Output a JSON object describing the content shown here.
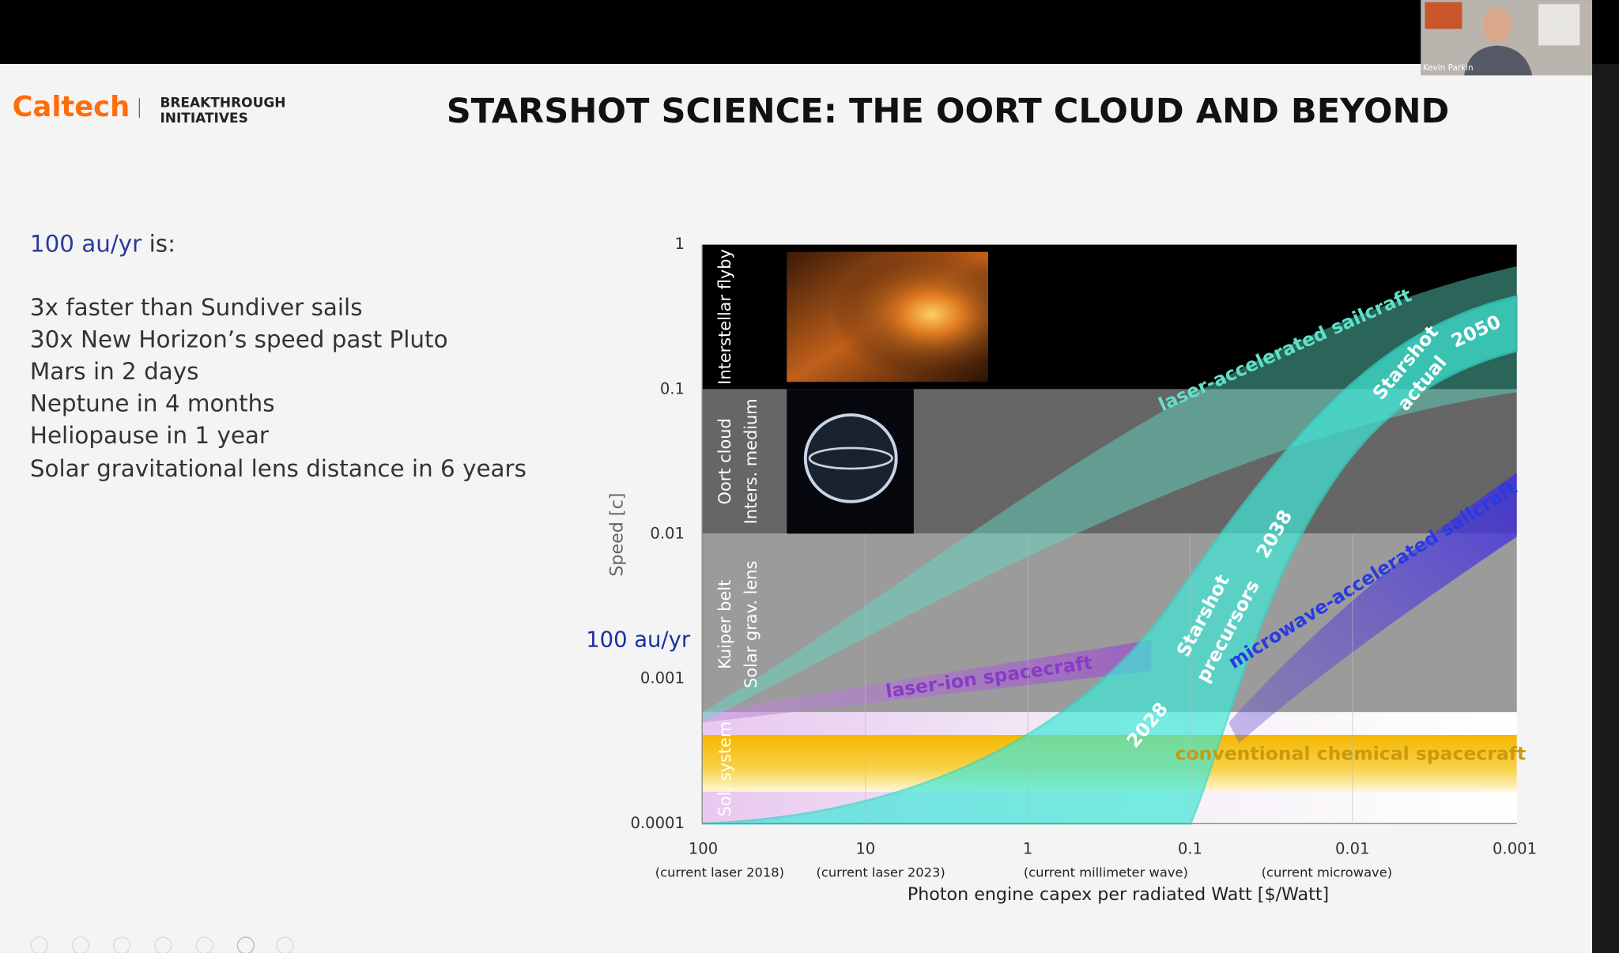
{
  "call": {
    "participant_name": "Kevin Parkin"
  },
  "slide": {
    "logo": "Caltech",
    "partner": [
      "BREAKTHROUGH",
      "INITIATIVES"
    ],
    "title": "STARSHOT SCIENCE: THE OORT CLOUD AND BEYOND",
    "intro": {
      "highlight": "100 au/yr",
      "text": "is:"
    },
    "facts": [
      "3x faster than Sundiver sails",
      "30x New Horizon’s speed past Pluto",
      "Mars in 2 days",
      "Neptune in 4 months",
      "Heliopause in 1 year",
      "Solar gravitational lens distance in 6 years"
    ],
    "diagram": {
      "y_axis_label": "Speed [c]",
      "y_ticks": [
        "1",
        "0.1",
        "0.01",
        "0.001",
        "0.0001"
      ],
      "marker": "100 au/yr",
      "x_axis_label": "Photon engine capex per radiated Watt [$/Watt]",
      "x_ticks": [
        "100",
        "10",
        "1",
        "0.1",
        "0.01",
        "0.001"
      ],
      "x_notes": [
        "(current laser 2018)",
        "(current laser 2023)",
        "(current millimeter wave)",
        "(current microwave)"
      ],
      "zones": [
        [
          "Interstellar flyby"
        ],
        [
          "Oort cloud",
          "Inters. medium"
        ],
        [
          "Kuiper belt",
          "Solar grav. lens"
        ],
        [
          "Sol. system"
        ]
      ],
      "curves": {
        "laser_sail": "laser-accelerated sailcraft",
        "laser_ion": "laser-ion spacecraft",
        "microwave_sail": "microwave-accelerated sailcraft",
        "chemical": "conventional chemical spacecraft",
        "starshot": {
          "label": [
            "Starshot",
            "actual"
          ],
          "year": "2050"
        },
        "precursors": {
          "label": [
            "Starshot",
            "precursors"
          ],
          "years": [
            "2028",
            "2038"
          ]
        }
      }
    }
  }
}
